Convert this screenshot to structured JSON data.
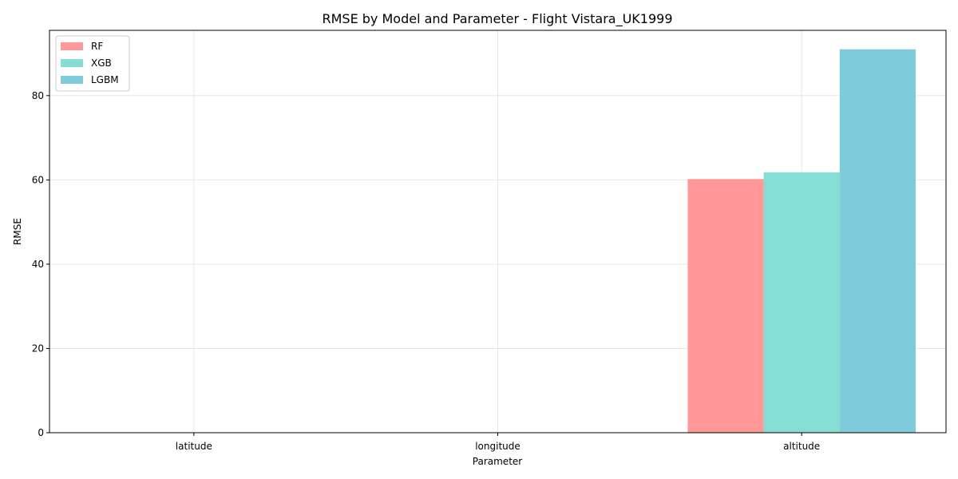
{
  "chart_data": {
    "type": "bar",
    "title": "RMSE by Model and Parameter - Flight Vistara_UK1999",
    "xlabel": "Parameter",
    "ylabel": "RMSE",
    "categories": [
      "latitude",
      "longitude",
      "altitude"
    ],
    "series": [
      {
        "name": "RF",
        "values": [
          0.0,
          0.0,
          60.2
        ],
        "color": "#ff9896"
      },
      {
        "name": "XGB",
        "values": [
          0.0,
          0.0,
          61.8
        ],
        "color": "#86ddd4"
      },
      {
        "name": "LGBM",
        "values": [
          0.0,
          0.0,
          91.0
        ],
        "color": "#7ecbdc"
      }
    ],
    "ylim": [
      0,
      95.5
    ],
    "yticks": [
      0,
      20,
      40,
      60,
      80
    ],
    "grid": true,
    "legend_position": "top-left"
  }
}
